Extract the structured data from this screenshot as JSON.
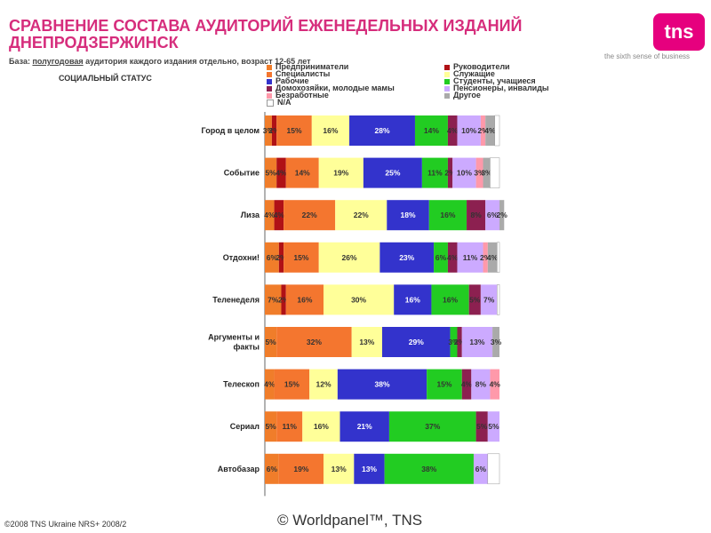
{
  "header": {
    "title_line1": "СРАВНЕНИЕ СОСТАВА АУДИТОРИЙ ЕЖЕНЕДЕЛЬНЫХ ИЗДАНИЙ",
    "title_line2": "ДНЕПРОДЗЕРЖИНСК",
    "base_prefix": "База: ",
    "base_underlined": "полугодовая",
    "base_suffix": " аудитория каждого издания отдельно, возраст 12-65 лет",
    "section": "СОЦИАЛЬНЫЙ СТАТУС"
  },
  "logo": {
    "text": "tns",
    "tagline": "the sixth sense of business"
  },
  "footer": {
    "left": "©2008 TNS Ukraine NRS+ 2008/2",
    "center": "© Worldpanel™, TNS"
  },
  "colors": {
    "entrepreneurs": "#f07d2a",
    "managers": "#b01116",
    "specialists": "#f4762f",
    "employees": "#ffff99",
    "workers": "#3333cc",
    "students": "#22cc22",
    "housewives": "#8c2050",
    "pensioners": "#ccaaff",
    "unemployed": "#ff99aa",
    "other": "#aaaaaa",
    "na": "#ffffff"
  },
  "chart_data": {
    "type": "bar",
    "orientation": "horizontal",
    "stacked": true,
    "xlim": [
      0,
      100
    ],
    "legend": [
      {
        "key": "entrepreneurs",
        "name": "Предприниматели"
      },
      {
        "key": "managers",
        "name": "Руководители"
      },
      {
        "key": "specialists",
        "name": "Специалисты"
      },
      {
        "key": "employees",
        "name": "Служащие"
      },
      {
        "key": "workers",
        "name": "Рабочие"
      },
      {
        "key": "students",
        "name": "Студенты, учащиеся"
      },
      {
        "key": "housewives",
        "name": "Домохозяйки, молодые мамы"
      },
      {
        "key": "pensioners",
        "name": "Пенсионеры, инвалиды"
      },
      {
        "key": "unemployed",
        "name": "Безработные"
      },
      {
        "key": "other",
        "name": "Другое"
      },
      {
        "key": "na",
        "name": "N/A"
      }
    ],
    "categories": [
      "Город в целом",
      "Событие",
      "Лиза",
      "Отдохни!",
      "Теленеделя",
      "Аргументы и факты",
      "Телескоп",
      "Сериал",
      "Автобазар"
    ],
    "rows": [
      {
        "segments": [
          {
            "key": "entrepreneurs",
            "value": 3,
            "label": "3%"
          },
          {
            "key": "managers",
            "value": 2,
            "label": "2%"
          },
          {
            "key": "specialists",
            "value": 15,
            "label": "15%"
          },
          {
            "key": "employees",
            "value": 16,
            "label": "16%"
          },
          {
            "key": "workers",
            "value": 28,
            "label": "28%"
          },
          {
            "key": "students",
            "value": 14,
            "label": "14%"
          },
          {
            "key": "housewives",
            "value": 4,
            "label": "4%"
          },
          {
            "key": "pensioners",
            "value": 10,
            "label": "10%"
          },
          {
            "key": "unemployed",
            "value": 2,
            "label": "2%"
          },
          {
            "key": "other",
            "value": 4,
            "label": "4%"
          },
          {
            "key": "na",
            "value": 2,
            "label": ""
          }
        ]
      },
      {
        "segments": [
          {
            "key": "entrepreneurs",
            "value": 5,
            "label": "5%"
          },
          {
            "key": "managers",
            "value": 4,
            "label": "4%"
          },
          {
            "key": "specialists",
            "value": 14,
            "label": "14%"
          },
          {
            "key": "employees",
            "value": 19,
            "label": "19%"
          },
          {
            "key": "workers",
            "value": 25,
            "label": "25%"
          },
          {
            "key": "students",
            "value": 11,
            "label": "11%"
          },
          {
            "key": "housewives",
            "value": 2,
            "label": "2%"
          },
          {
            "key": "pensioners",
            "value": 10,
            "label": "10%"
          },
          {
            "key": "unemployed",
            "value": 3,
            "label": "3%"
          },
          {
            "key": "other",
            "value": 3,
            "label": "3%"
          },
          {
            "key": "na",
            "value": 4,
            "label": ""
          }
        ]
      },
      {
        "segments": [
          {
            "key": "entrepreneurs",
            "value": 4,
            "label": "4%"
          },
          {
            "key": "managers",
            "value": 4,
            "label": "4%"
          },
          {
            "key": "specialists",
            "value": 22,
            "label": "22%"
          },
          {
            "key": "employees",
            "value": 22,
            "label": "22%"
          },
          {
            "key": "workers",
            "value": 18,
            "label": "18%"
          },
          {
            "key": "students",
            "value": 16,
            "label": "16%"
          },
          {
            "key": "housewives",
            "value": 8,
            "label": "8%"
          },
          {
            "key": "pensioners",
            "value": 6,
            "label": "6%"
          },
          {
            "key": "other",
            "value": 2,
            "label": "2%"
          }
        ]
      },
      {
        "segments": [
          {
            "key": "entrepreneurs",
            "value": 6,
            "label": "6%"
          },
          {
            "key": "managers",
            "value": 2,
            "label": "2%"
          },
          {
            "key": "specialists",
            "value": 15,
            "label": "15%"
          },
          {
            "key": "employees",
            "value": 26,
            "label": "26%"
          },
          {
            "key": "workers",
            "value": 23,
            "label": "23%"
          },
          {
            "key": "students",
            "value": 6,
            "label": "6%"
          },
          {
            "key": "housewives",
            "value": 4,
            "label": "4%"
          },
          {
            "key": "pensioners",
            "value": 11,
            "label": "11%"
          },
          {
            "key": "unemployed",
            "value": 2,
            "label": "2%"
          },
          {
            "key": "other",
            "value": 4,
            "label": "4%"
          },
          {
            "key": "na",
            "value": 1,
            "label": ""
          }
        ]
      },
      {
        "segments": [
          {
            "key": "entrepreneurs",
            "value": 7,
            "label": "7%"
          },
          {
            "key": "managers",
            "value": 2,
            "label": "2%"
          },
          {
            "key": "specialists",
            "value": 16,
            "label": "16%"
          },
          {
            "key": "employees",
            "value": 30,
            "label": "30%"
          },
          {
            "key": "workers",
            "value": 16,
            "label": "16%"
          },
          {
            "key": "students",
            "value": 16,
            "label": "16%"
          },
          {
            "key": "housewives",
            "value": 5,
            "label": "5%"
          },
          {
            "key": "pensioners",
            "value": 7,
            "label": "7%"
          },
          {
            "key": "na",
            "value": 1,
            "label": ""
          }
        ]
      },
      {
        "segments": [
          {
            "key": "entrepreneurs",
            "value": 5,
            "label": "5%"
          },
          {
            "key": "specialists",
            "value": 32,
            "label": "32%"
          },
          {
            "key": "employees",
            "value": 13,
            "label": "13%"
          },
          {
            "key": "workers",
            "value": 29,
            "label": "29%"
          },
          {
            "key": "students",
            "value": 3,
            "label": "3%"
          },
          {
            "key": "housewives",
            "value": 2,
            "label": "2%"
          },
          {
            "key": "pensioners",
            "value": 13,
            "label": "13%"
          },
          {
            "key": "other",
            "value": 3,
            "label": "3%"
          }
        ]
      },
      {
        "segments": [
          {
            "key": "entrepreneurs",
            "value": 4,
            "label": "4%"
          },
          {
            "key": "specialists",
            "value": 15,
            "label": "15%"
          },
          {
            "key": "employees",
            "value": 12,
            "label": "12%"
          },
          {
            "key": "workers",
            "value": 38,
            "label": "38%"
          },
          {
            "key": "students",
            "value": 15,
            "label": "15%"
          },
          {
            "key": "housewives",
            "value": 4,
            "label": "4%"
          },
          {
            "key": "pensioners",
            "value": 8,
            "label": "8%"
          },
          {
            "key": "unemployed",
            "value": 4,
            "label": "4%"
          }
        ]
      },
      {
        "segments": [
          {
            "key": "entrepreneurs",
            "value": 5,
            "label": "5%"
          },
          {
            "key": "specialists",
            "value": 11,
            "label": "11%"
          },
          {
            "key": "employees",
            "value": 16,
            "label": "16%"
          },
          {
            "key": "workers",
            "value": 21,
            "label": "21%"
          },
          {
            "key": "students",
            "value": 37,
            "label": "37%"
          },
          {
            "key": "housewives",
            "value": 5,
            "label": "5%"
          },
          {
            "key": "pensioners",
            "value": 5,
            "label": "5%"
          }
        ]
      },
      {
        "segments": [
          {
            "key": "entrepreneurs",
            "value": 6,
            "label": "6%"
          },
          {
            "key": "specialists",
            "value": 19,
            "label": "19%"
          },
          {
            "key": "employees",
            "value": 13,
            "label": "13%"
          },
          {
            "key": "workers",
            "value": 13,
            "label": "13%"
          },
          {
            "key": "students",
            "value": 38,
            "label": "38%"
          },
          {
            "key": "pensioners",
            "value": 6,
            "label": "6%"
          },
          {
            "key": "na",
            "value": 5,
            "label": ""
          }
        ]
      }
    ]
  }
}
